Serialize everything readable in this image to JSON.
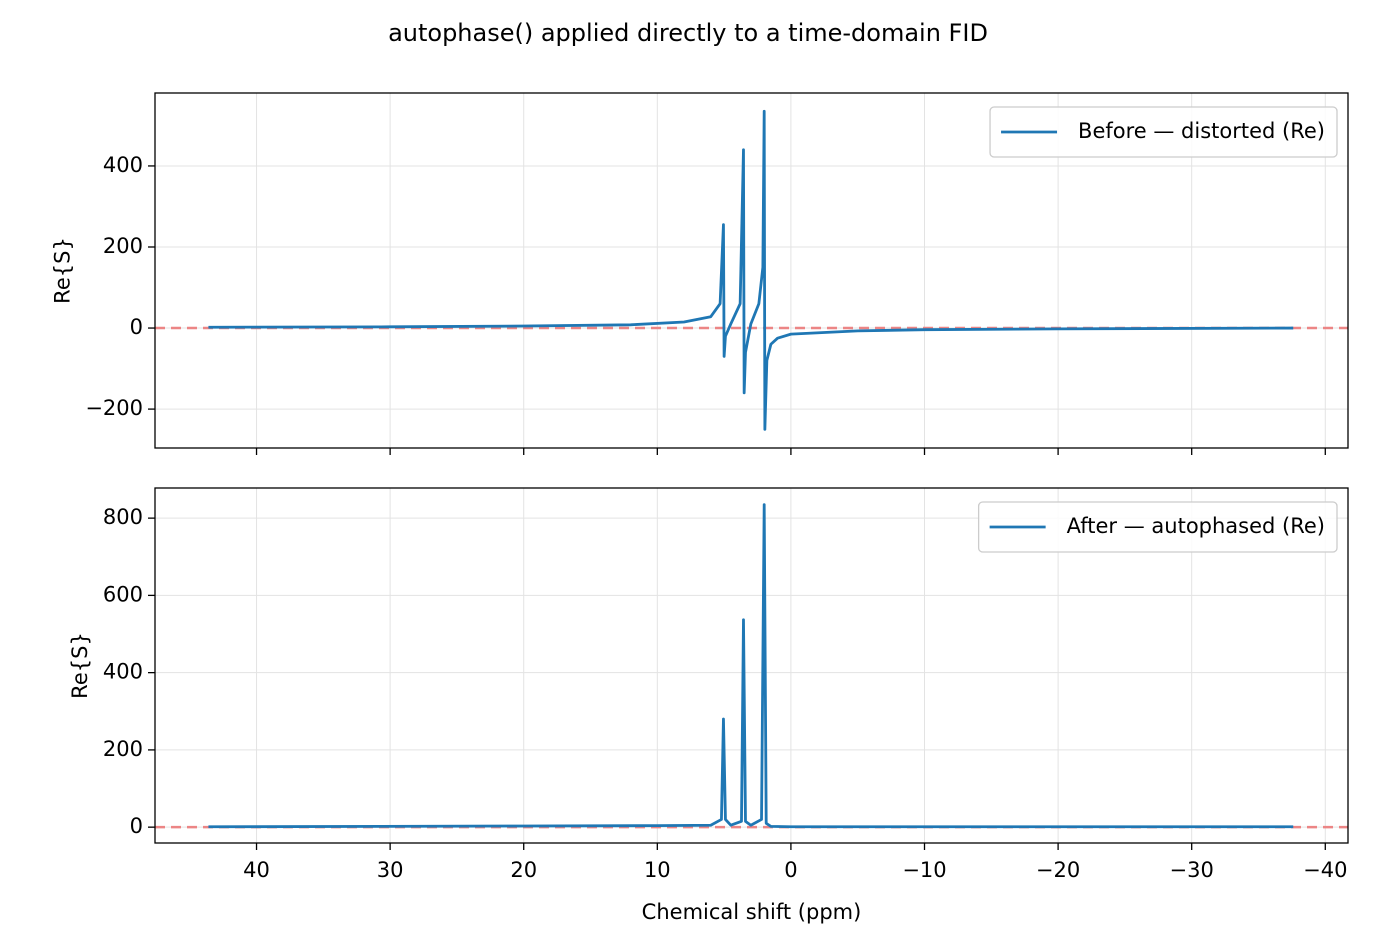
{
  "title": "autophase() applied directly to a time-domain FID",
  "chart_data": [
    {
      "type": "line",
      "ylabel": "Re{S}",
      "grid": true,
      "legend": "upper right",
      "show_xtick_labels": false,
      "xlim": [
        47.6,
        -41.7
      ],
      "ylim": [
        -296,
        580
      ],
      "xticks": [
        40,
        30,
        20,
        10,
        0,
        -10,
        -20,
        -30,
        -40
      ],
      "yticks": [
        {
          "value": -200,
          "label": "−200"
        },
        0,
        200,
        400
      ],
      "hline": {
        "value": 0,
        "color": "#ec8585"
      },
      "x": [
        43.6,
        30,
        20,
        12,
        8,
        6,
        5.3,
        5.05,
        5.0,
        4.9,
        4.5,
        3.8,
        3.55,
        3.5,
        3.4,
        3.0,
        2.4,
        2.1,
        2.0,
        1.95,
        1.8,
        1.5,
        1,
        0,
        -5,
        -10,
        -20,
        -37.6
      ],
      "series": [
        {
          "name": "Before — distorted (Re)",
          "color": "#1f77b4",
          "values": [
            2,
            3,
            5,
            8,
            15,
            28,
            60,
            255,
            -70,
            -20,
            10,
            60,
            440,
            -160,
            -60,
            10,
            60,
            150,
            535,
            -250,
            -80,
            -40,
            -25,
            -15,
            -7,
            -4,
            -2,
            0
          ]
        }
      ]
    },
    {
      "type": "line",
      "ylabel": "Re{S}",
      "xlabel": "Chemical shift (ppm)",
      "grid": true,
      "legend": "upper right",
      "show_xtick_labels": true,
      "xlim": [
        47.6,
        -41.7
      ],
      "ylim": [
        -41,
        878
      ],
      "xticks": [
        40,
        30,
        20,
        10,
        0,
        {
          "value": -10,
          "label": "−10"
        },
        {
          "value": -20,
          "label": "−20"
        },
        {
          "value": -30,
          "label": "−30"
        },
        {
          "value": -40,
          "label": "−40"
        }
      ],
      "yticks": [
        0,
        200,
        400,
        600,
        800
      ],
      "hline": {
        "value": 0,
        "color": "#ec8585"
      },
      "x": [
        43.6,
        20,
        10,
        6,
        5.2,
        5.05,
        4.9,
        4.5,
        3.7,
        3.55,
        3.4,
        3.0,
        2.2,
        2.0,
        1.85,
        1.5,
        0,
        -20,
        -37.6
      ],
      "series": [
        {
          "name": "After — autophased (Re)",
          "color": "#1f77b4",
          "values": [
            1,
            3,
            4,
            5,
            20,
            280,
            20,
            5,
            15,
            537,
            15,
            5,
            20,
            835,
            10,
            2,
            1,
            1,
            1
          ]
        }
      ]
    }
  ]
}
